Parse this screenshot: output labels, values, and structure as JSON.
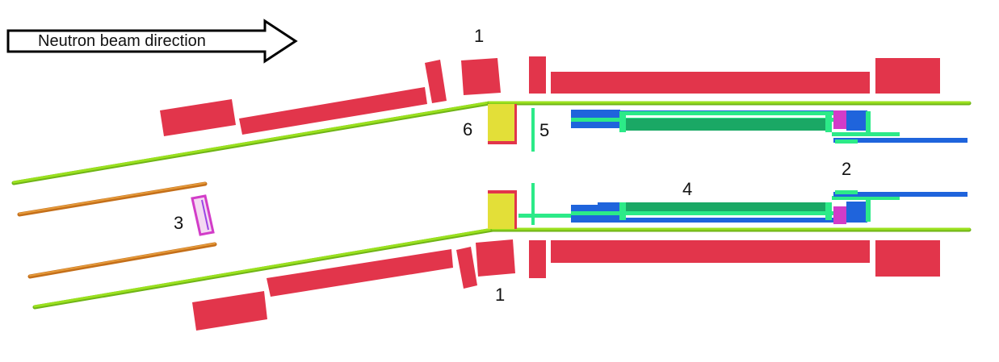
{
  "arrow": {
    "text": "Neutron beam direction"
  },
  "labels": {
    "top_1": "1",
    "bottom_1": "1",
    "two": "2",
    "three": "3",
    "four": "4",
    "five": "5",
    "six": "6"
  },
  "colors": {
    "shield_red": "#e2354b",
    "guide_green": "#9be11f",
    "guide_dark": "#6fb417",
    "orange_rod": "#e08a2a",
    "yellow_block": "#e3df38",
    "cyan_green": "#2cea88",
    "teal_dark": "#1aa865",
    "blue": "#1f64dc",
    "magenta": "#d23cc8",
    "purple": "#9b44e6"
  }
}
